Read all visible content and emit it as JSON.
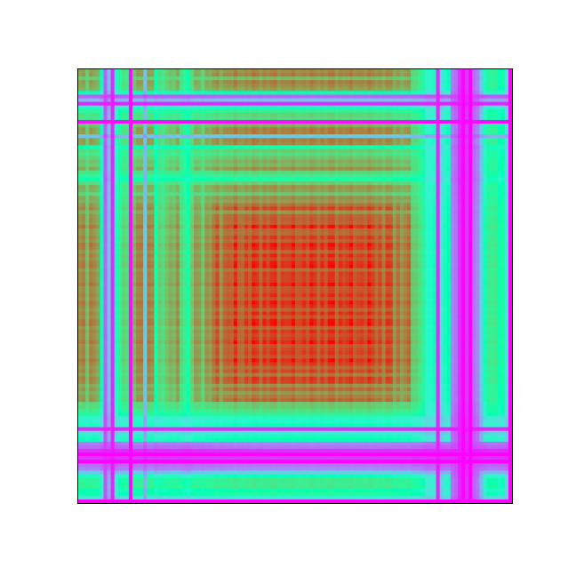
{
  "chart_data": {
    "type": "heatmap",
    "rows": 120,
    "cols": 120,
    "colormap": "rainbow",
    "value_range": [
      0,
      1
    ],
    "axes_visible": false,
    "colorbar": false,
    "title": "",
    "xlabel": "",
    "ylabel": "",
    "profile_knots": [
      [
        0,
        0.8
      ],
      [
        1,
        0.82
      ],
      [
        3,
        0.85
      ],
      [
        5,
        0.8
      ],
      [
        6,
        0.5
      ],
      [
        7,
        0.15
      ],
      [
        8,
        0.3
      ],
      [
        9,
        0.5
      ],
      [
        10,
        0.48
      ],
      [
        11,
        0.6
      ],
      [
        12,
        0.72
      ],
      [
        15,
        0.8
      ],
      [
        20,
        0.85
      ],
      [
        21,
        0.55
      ],
      [
        23,
        0.75
      ],
      [
        26,
        0.78
      ],
      [
        29,
        0.7
      ],
      [
        30,
        0.55
      ],
      [
        31,
        0.75
      ],
      [
        40,
        0.9
      ],
      [
        50,
        0.95
      ],
      [
        60,
        0.95
      ],
      [
        70,
        0.95
      ],
      [
        80,
        0.95
      ],
      [
        85,
        0.9
      ],
      [
        90,
        0.85
      ],
      [
        95,
        0.65
      ],
      [
        96,
        0.4
      ],
      [
        98,
        0.5
      ],
      [
        99,
        0.05
      ],
      [
        100,
        0.4
      ],
      [
        102,
        0.5
      ],
      [
        103,
        0.2
      ],
      [
        105,
        0.08
      ],
      [
        106,
        0.0
      ],
      [
        108,
        0.1
      ],
      [
        110,
        0.2
      ],
      [
        112,
        0.45
      ],
      [
        113,
        0.65
      ],
      [
        115,
        0.65
      ],
      [
        117,
        0.55
      ],
      [
        118,
        0.4
      ],
      [
        119,
        0.0
      ]
    ],
    "sharp_dips": [
      {
        "index": 9,
        "value": 0.05
      },
      {
        "index": 14,
        "value": 0.02
      },
      {
        "index": 18,
        "value": 0.3
      },
      {
        "index": 108,
        "value": 0.0
      }
    ]
  }
}
